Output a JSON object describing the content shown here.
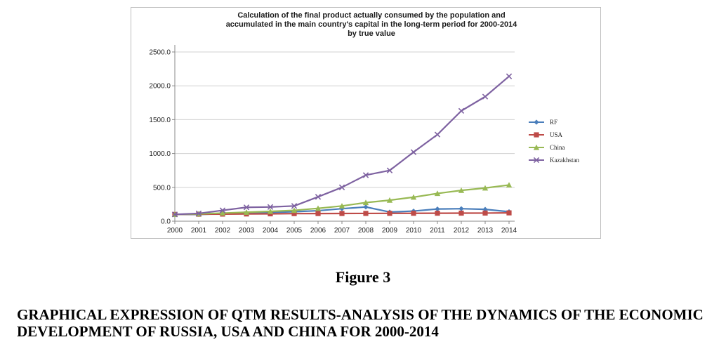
{
  "chart_data": {
    "type": "line",
    "title_lines": [
      "Calculation of the final product actually consumed by the population and",
      "accumulated in the main country's capital in the long-term period for 2000-2014",
      "by  true value"
    ],
    "xlabel": "",
    "ylabel": "",
    "x": [
      "2000",
      "2001",
      "2002",
      "2003",
      "2004",
      "2005",
      "2006",
      "2007",
      "2008",
      "2009",
      "2010",
      "2011",
      "2012",
      "2013",
      "2014"
    ],
    "ylim": [
      0,
      2500
    ],
    "yticks": [
      0,
      500,
      1000,
      1500,
      2000,
      2500
    ],
    "ytick_labels": [
      "0.0",
      "500.0",
      "1000.0",
      "1500.0",
      "2000.0",
      "2500.0"
    ],
    "grid": "horizontal",
    "legend_position": "right",
    "series": [
      {
        "name": "RF",
        "color": "#4a7ebb",
        "marker": "diamond",
        "values": [
          100,
          100,
          110,
          115,
          130,
          140,
          155,
          185,
          210,
          135,
          150,
          180,
          185,
          175,
          140
        ]
      },
      {
        "name": "USA",
        "color": "#be4b48",
        "marker": "square",
        "values": [
          100,
          103,
          105,
          107,
          109,
          112,
          113,
          114,
          115,
          116,
          117,
          118,
          119,
          120,
          123
        ]
      },
      {
        "name": "China",
        "color": "#98b954",
        "marker": "triangle",
        "values": [
          100,
          108,
          120,
          132,
          145,
          160,
          190,
          225,
          275,
          310,
          355,
          410,
          455,
          490,
          535
        ]
      },
      {
        "name": "Kazakhstan",
        "color": "#7e62a1",
        "marker": "x",
        "values": [
          100,
          115,
          160,
          205,
          210,
          225,
          360,
          500,
          680,
          750,
          1020,
          1280,
          1630,
          1840,
          2140
        ]
      }
    ]
  },
  "figure_label": "Figure 3",
  "caption": "GRAPHICAL EXPRESSION OF QTM RESULTS-ANALYSIS OF THE DYNAMICS OF THE ECONOMIC DEVELOPMENT OF RUSSIA, USA AND CHINA FOR 2000-2014"
}
